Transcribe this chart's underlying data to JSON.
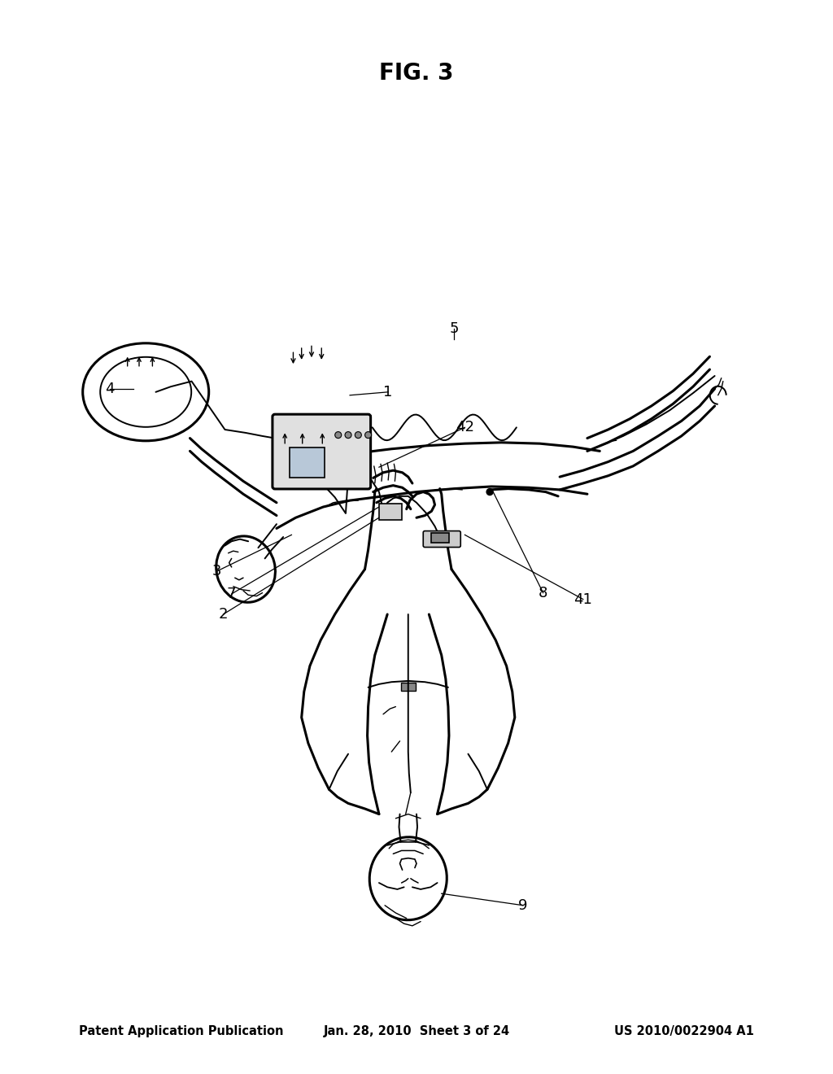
{
  "background_color": "#ffffff",
  "header_left": "Patent Application Publication",
  "header_center": "Jan. 28, 2010  Sheet 3 of 24",
  "header_right": "US 2010/0022904 A1",
  "figure_label": "FIG. 3",
  "header_fontsize": 10.5,
  "figure_label_fontsize": 20,
  "label_fontsize": 13,
  "lw_main": 2.2,
  "lw_thin": 1.4,
  "lw_detail": 1.0
}
